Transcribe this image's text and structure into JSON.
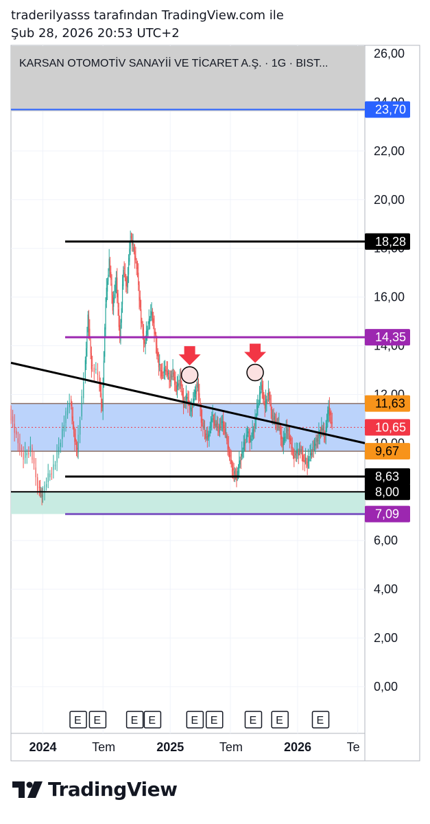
{
  "header": {
    "line1": "traderilyasss tarafından TradingView.com ile",
    "line2": "Şub 28, 2026 20:53 UTC+2"
  },
  "brand": {
    "name": "TradingView",
    "icon": "tradingview-logo-icon"
  },
  "chart_data": {
    "type": "candlestick",
    "title": "KARSAN OTOMOTİV SANAYİİ VE TİCARET A.Ş. · 1G · BIST...",
    "ylim": [
      0,
      26
    ],
    "y_ticks": [
      "26,00",
      "24,00",
      "22,00",
      "20,00",
      "18,00",
      "16,00",
      "14,00",
      "12,00",
      "10,00",
      "8,00",
      "6,00",
      "4,00",
      "2,00",
      "0,00"
    ],
    "y_tick_values": [
      26,
      24,
      22,
      20,
      18,
      16,
      14,
      12,
      10,
      8,
      6,
      4,
      2,
      0
    ],
    "x_ticks": [
      {
        "label": "2024",
        "bold": true,
        "t": 0.09
      },
      {
        "label": "Tem",
        "bold": false,
        "t": 0.26
      },
      {
        "label": "2025",
        "bold": true,
        "t": 0.45
      },
      {
        "label": "Tem",
        "bold": false,
        "t": 0.62
      },
      {
        "label": "2026",
        "bold": true,
        "t": 0.81
      },
      {
        "label": "Te",
        "bold": false,
        "t": 0.98
      }
    ],
    "price_series": [
      [
        0.0,
        11.4
      ],
      [
        0.02,
        10.2
      ],
      [
        0.04,
        9.4
      ],
      [
        0.06,
        9.8
      ],
      [
        0.08,
        8.2
      ],
      [
        0.09,
        7.8
      ],
      [
        0.11,
        8.6
      ],
      [
        0.13,
        9.2
      ],
      [
        0.15,
        10.5
      ],
      [
        0.17,
        11.8
      ],
      [
        0.18,
        10.4
      ],
      [
        0.19,
        9.6
      ],
      [
        0.21,
        12.6
      ],
      [
        0.22,
        15.2
      ],
      [
        0.23,
        13.2
      ],
      [
        0.25,
        12.8
      ],
      [
        0.26,
        11.3
      ],
      [
        0.27,
        15.8
      ],
      [
        0.28,
        17.5
      ],
      [
        0.29,
        15.6
      ],
      [
        0.3,
        16.8
      ],
      [
        0.31,
        14.2
      ],
      [
        0.32,
        17.2
      ],
      [
        0.33,
        16.4
      ],
      [
        0.34,
        18.5
      ],
      [
        0.35,
        17.9
      ],
      [
        0.36,
        17.0
      ],
      [
        0.37,
        15.0
      ],
      [
        0.38,
        14.0
      ],
      [
        0.39,
        14.9
      ],
      [
        0.4,
        15.4
      ],
      [
        0.41,
        14.3
      ],
      [
        0.42,
        13.2
      ],
      [
        0.43,
        12.8
      ],
      [
        0.44,
        13.1
      ],
      [
        0.45,
        12.6
      ],
      [
        0.46,
        12.9
      ],
      [
        0.47,
        12.2
      ],
      [
        0.48,
        12.7
      ],
      [
        0.49,
        11.6
      ],
      [
        0.5,
        11.9
      ],
      [
        0.51,
        11.3
      ],
      [
        0.52,
        11.9
      ],
      [
        0.53,
        12.4
      ],
      [
        0.54,
        11.0
      ],
      [
        0.55,
        10.4
      ],
      [
        0.56,
        10.2
      ],
      [
        0.57,
        11.1
      ],
      [
        0.58,
        10.8
      ],
      [
        0.59,
        10.6
      ],
      [
        0.6,
        10.9
      ],
      [
        0.61,
        10.3
      ],
      [
        0.62,
        9.5
      ],
      [
        0.63,
        8.8
      ],
      [
        0.64,
        8.6
      ],
      [
        0.65,
        9.3
      ],
      [
        0.66,
        9.9
      ],
      [
        0.67,
        10.4
      ],
      [
        0.68,
        10.1
      ],
      [
        0.69,
        10.7
      ],
      [
        0.7,
        11.6
      ],
      [
        0.71,
        12.4
      ],
      [
        0.72,
        11.5
      ],
      [
        0.73,
        12.1
      ],
      [
        0.74,
        11.1
      ],
      [
        0.75,
        10.9
      ],
      [
        0.76,
        10.7
      ],
      [
        0.77,
        9.9
      ],
      [
        0.78,
        10.6
      ],
      [
        0.79,
        10.2
      ],
      [
        0.8,
        9.5
      ],
      [
        0.81,
        9.6
      ],
      [
        0.82,
        9.7
      ],
      [
        0.83,
        9.3
      ],
      [
        0.84,
        9.2
      ],
      [
        0.85,
        9.6
      ],
      [
        0.86,
        9.9
      ],
      [
        0.87,
        10.2
      ],
      [
        0.88,
        10.6
      ],
      [
        0.89,
        10.3
      ],
      [
        0.9,
        11.5
      ],
      [
        0.91,
        10.65
      ]
    ],
    "horizontal_lines": [
      {
        "value": 23.7,
        "label": "23,70",
        "color": "#2962ff",
        "label_bg": "#2962ff"
      },
      {
        "value": 18.28,
        "label": "18,28",
        "color": "#000000",
        "label_bg": "#000000"
      },
      {
        "value": 14.35,
        "label": "14,35",
        "color": "#9c27b0",
        "label_bg": "#9c27b0"
      },
      {
        "value": 8.63,
        "label": "8,63",
        "color": "#000000",
        "label_bg": "#000000"
      },
      {
        "value": 8.0,
        "label": "8,00",
        "color": "#000000",
        "label_bg": "#000000"
      },
      {
        "value": 7.09,
        "label": "7,09",
        "color": "#7e57c2",
        "label_bg": "#9c27b0"
      }
    ],
    "zones": [
      {
        "from": 9.67,
        "to": 11.63,
        "color": "#bbd3fb",
        "upper_label": "11,63",
        "lower_label": "9,67",
        "label_bg": "#f7931a"
      },
      {
        "from": 7.09,
        "to": 8.0,
        "color": "#c8ebe2"
      }
    ],
    "last_price": {
      "value": 10.65,
      "label": "10,65",
      "color": "#f23645"
    },
    "trendline": {
      "start": [
        0.0,
        13.3
      ],
      "end": [
        1.0,
        10.0
      ]
    },
    "markers": [
      {
        "t": 0.505,
        "value": 12.8,
        "type": "down-arrow",
        "color": "#f23645"
      },
      {
        "t": 0.69,
        "value": 12.9,
        "type": "down-arrow",
        "color": "#f23645"
      }
    ],
    "earnings_markers": {
      "symbol": "E",
      "t": [
        0.19,
        0.245,
        0.35,
        0.4,
        0.52,
        0.575,
        0.685,
        0.76,
        0.875
      ]
    },
    "colors": {
      "up": "#26a69a",
      "down": "#ef5350"
    }
  }
}
